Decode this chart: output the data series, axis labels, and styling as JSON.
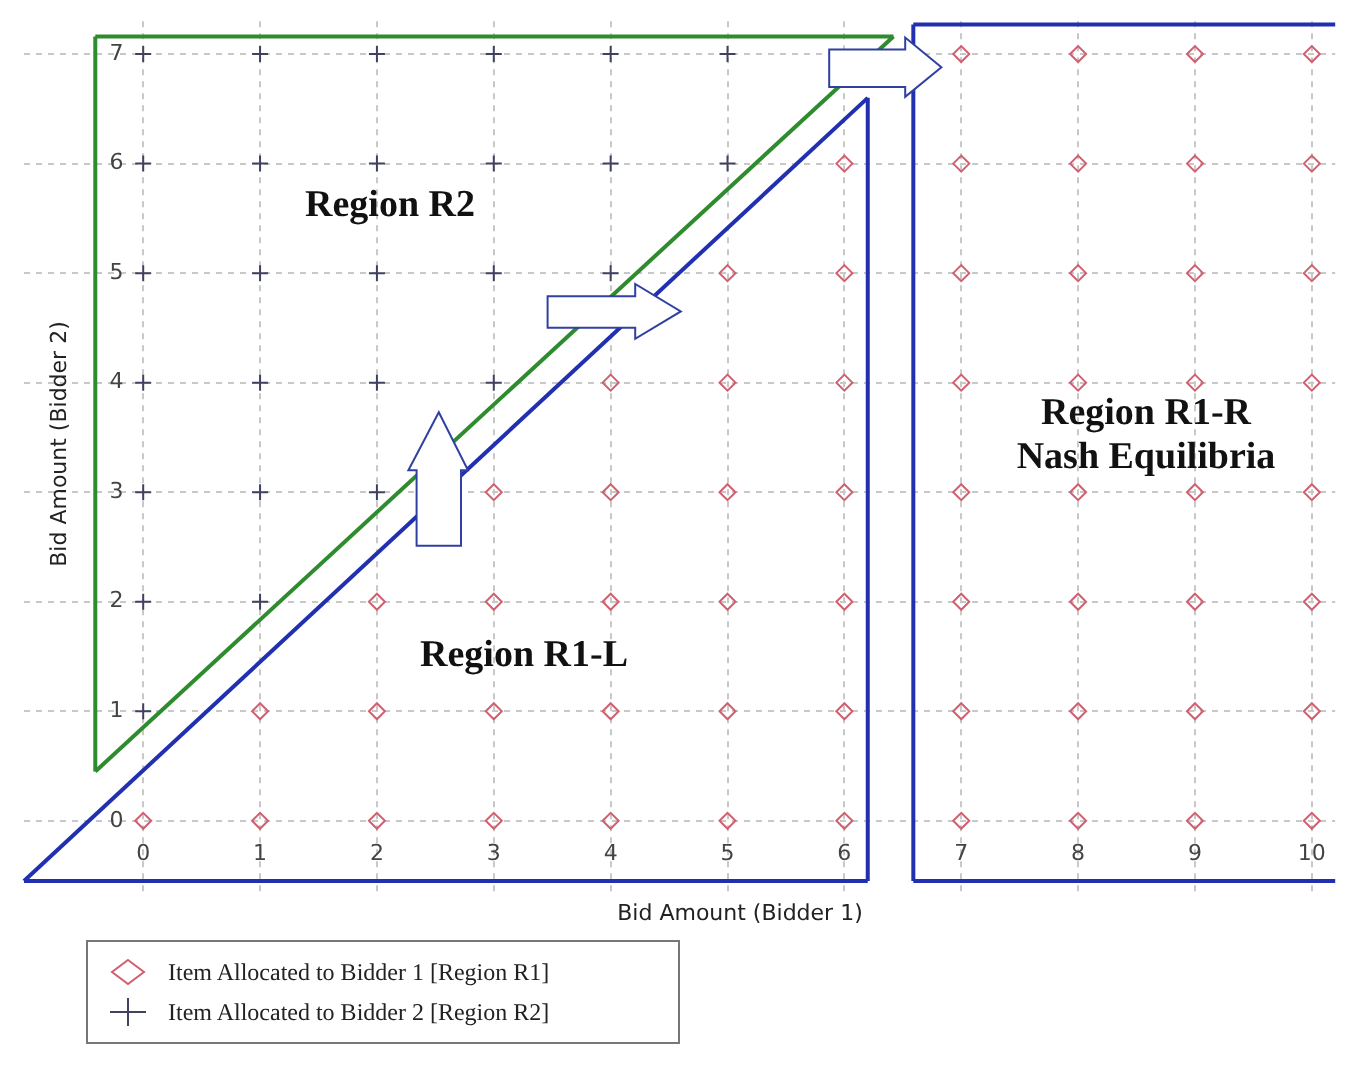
{
  "chart_data": {
    "type": "scatter",
    "xlabel": "Bid Amount (Bidder 1)",
    "ylabel": "Bid Amount (Bidder 2)",
    "xlim": [
      -1.02,
      10.2
    ],
    "ylim": [
      -0.65,
      7.3
    ],
    "xticks": [
      0,
      1,
      2,
      3,
      4,
      5,
      6,
      7,
      8,
      9,
      10
    ],
    "yticks": [
      0,
      1,
      2,
      3,
      4,
      5,
      6,
      7
    ],
    "grid": true,
    "legend": "bottom left",
    "annotations": [
      "Region R2",
      "Region R1-L",
      "Region R1-R",
      "Nash Equilibria"
    ],
    "series": [
      {
        "name": "Item Allocated to Bidder 1 [Region R1]",
        "color": "#d06070",
        "marker": "diamond",
        "x": [
          0,
          1,
          2,
          3,
          4,
          5,
          6,
          7,
          8,
          9,
          10,
          1,
          2,
          3,
          4,
          5,
          6,
          7,
          8,
          9,
          10,
          2,
          3,
          4,
          5,
          6,
          7,
          8,
          9,
          10,
          3,
          4,
          5,
          6,
          7,
          8,
          9,
          10,
          4,
          5,
          6,
          7,
          8,
          9,
          10,
          5,
          6,
          7,
          8,
          9,
          10,
          6,
          7,
          8,
          9,
          10,
          7,
          8,
          9,
          10
        ],
        "values": [
          0,
          0,
          0,
          0,
          0,
          0,
          0,
          0,
          0,
          0,
          0,
          1,
          1,
          1,
          1,
          1,
          1,
          1,
          1,
          1,
          1,
          2,
          2,
          2,
          2,
          2,
          2,
          2,
          2,
          2,
          3,
          3,
          3,
          3,
          3,
          3,
          3,
          3,
          4,
          4,
          4,
          4,
          4,
          4,
          4,
          5,
          5,
          5,
          5,
          5,
          5,
          6,
          6,
          6,
          6,
          6,
          7,
          7,
          7,
          7
        ]
      },
      {
        "name": "Item Allocated to Bidder 2 [Region R2]",
        "color": "#404060",
        "marker": "cross",
        "x": [
          0,
          0,
          1,
          0,
          1,
          2,
          0,
          1,
          2,
          3,
          0,
          1,
          2,
          3,
          4,
          0,
          1,
          2,
          3,
          4,
          5,
          0,
          1,
          2,
          3,
          4,
          5
        ],
        "values": [
          1,
          2,
          2,
          3,
          3,
          3,
          4,
          4,
          4,
          4,
          5,
          5,
          5,
          5,
          5,
          6,
          6,
          6,
          6,
          6,
          6,
          7,
          7,
          7,
          7,
          7,
          7
        ]
      },
      {
        "type": "line",
        "color": "#2e8b2e",
        "marker": "none",
        "x": [
          -0.41,
          -0.41
        ],
        "values": [
          0.45,
          7.16
        ]
      },
      {
        "type": "line",
        "color": "#2e8b2e",
        "marker": "none",
        "x": [
          -0.41,
          6.42
        ],
        "values": [
          7.16,
          7.16
        ]
      },
      {
        "type": "line",
        "color": "#2e8b2e",
        "marker": "none",
        "x": [
          -0.41,
          6.42
        ],
        "values": [
          0.45,
          7.16
        ]
      },
      {
        "type": "line",
        "color": "#2030b0",
        "marker": "none",
        "x": [
          -1.02,
          6.2
        ],
        "values": [
          -0.55,
          -0.55
        ]
      },
      {
        "type": "line",
        "color": "#2030b0",
        "marker": "none",
        "x": [
          6.2,
          6.2
        ],
        "values": [
          -0.55,
          6.6
        ]
      },
      {
        "type": "line",
        "color": "#2030b0",
        "marker": "none",
        "x": [
          -1.02,
          6.2
        ],
        "values": [
          -0.55,
          6.6
        ]
      },
      {
        "type": "line",
        "color": "#2030b0",
        "marker": "none",
        "x": [
          6.59,
          10.2
        ],
        "values": [
          7.27,
          7.27
        ]
      },
      {
        "type": "line",
        "color": "#2030b0",
        "marker": "none",
        "x": [
          6.59,
          6.59
        ],
        "values": [
          -0.55,
          7.27
        ]
      },
      {
        "type": "line",
        "color": "#2030b0",
        "marker": "none",
        "x": [
          6.59,
          10.2
        ],
        "values": [
          -0.55,
          -0.55
        ]
      }
    ]
  }
}
